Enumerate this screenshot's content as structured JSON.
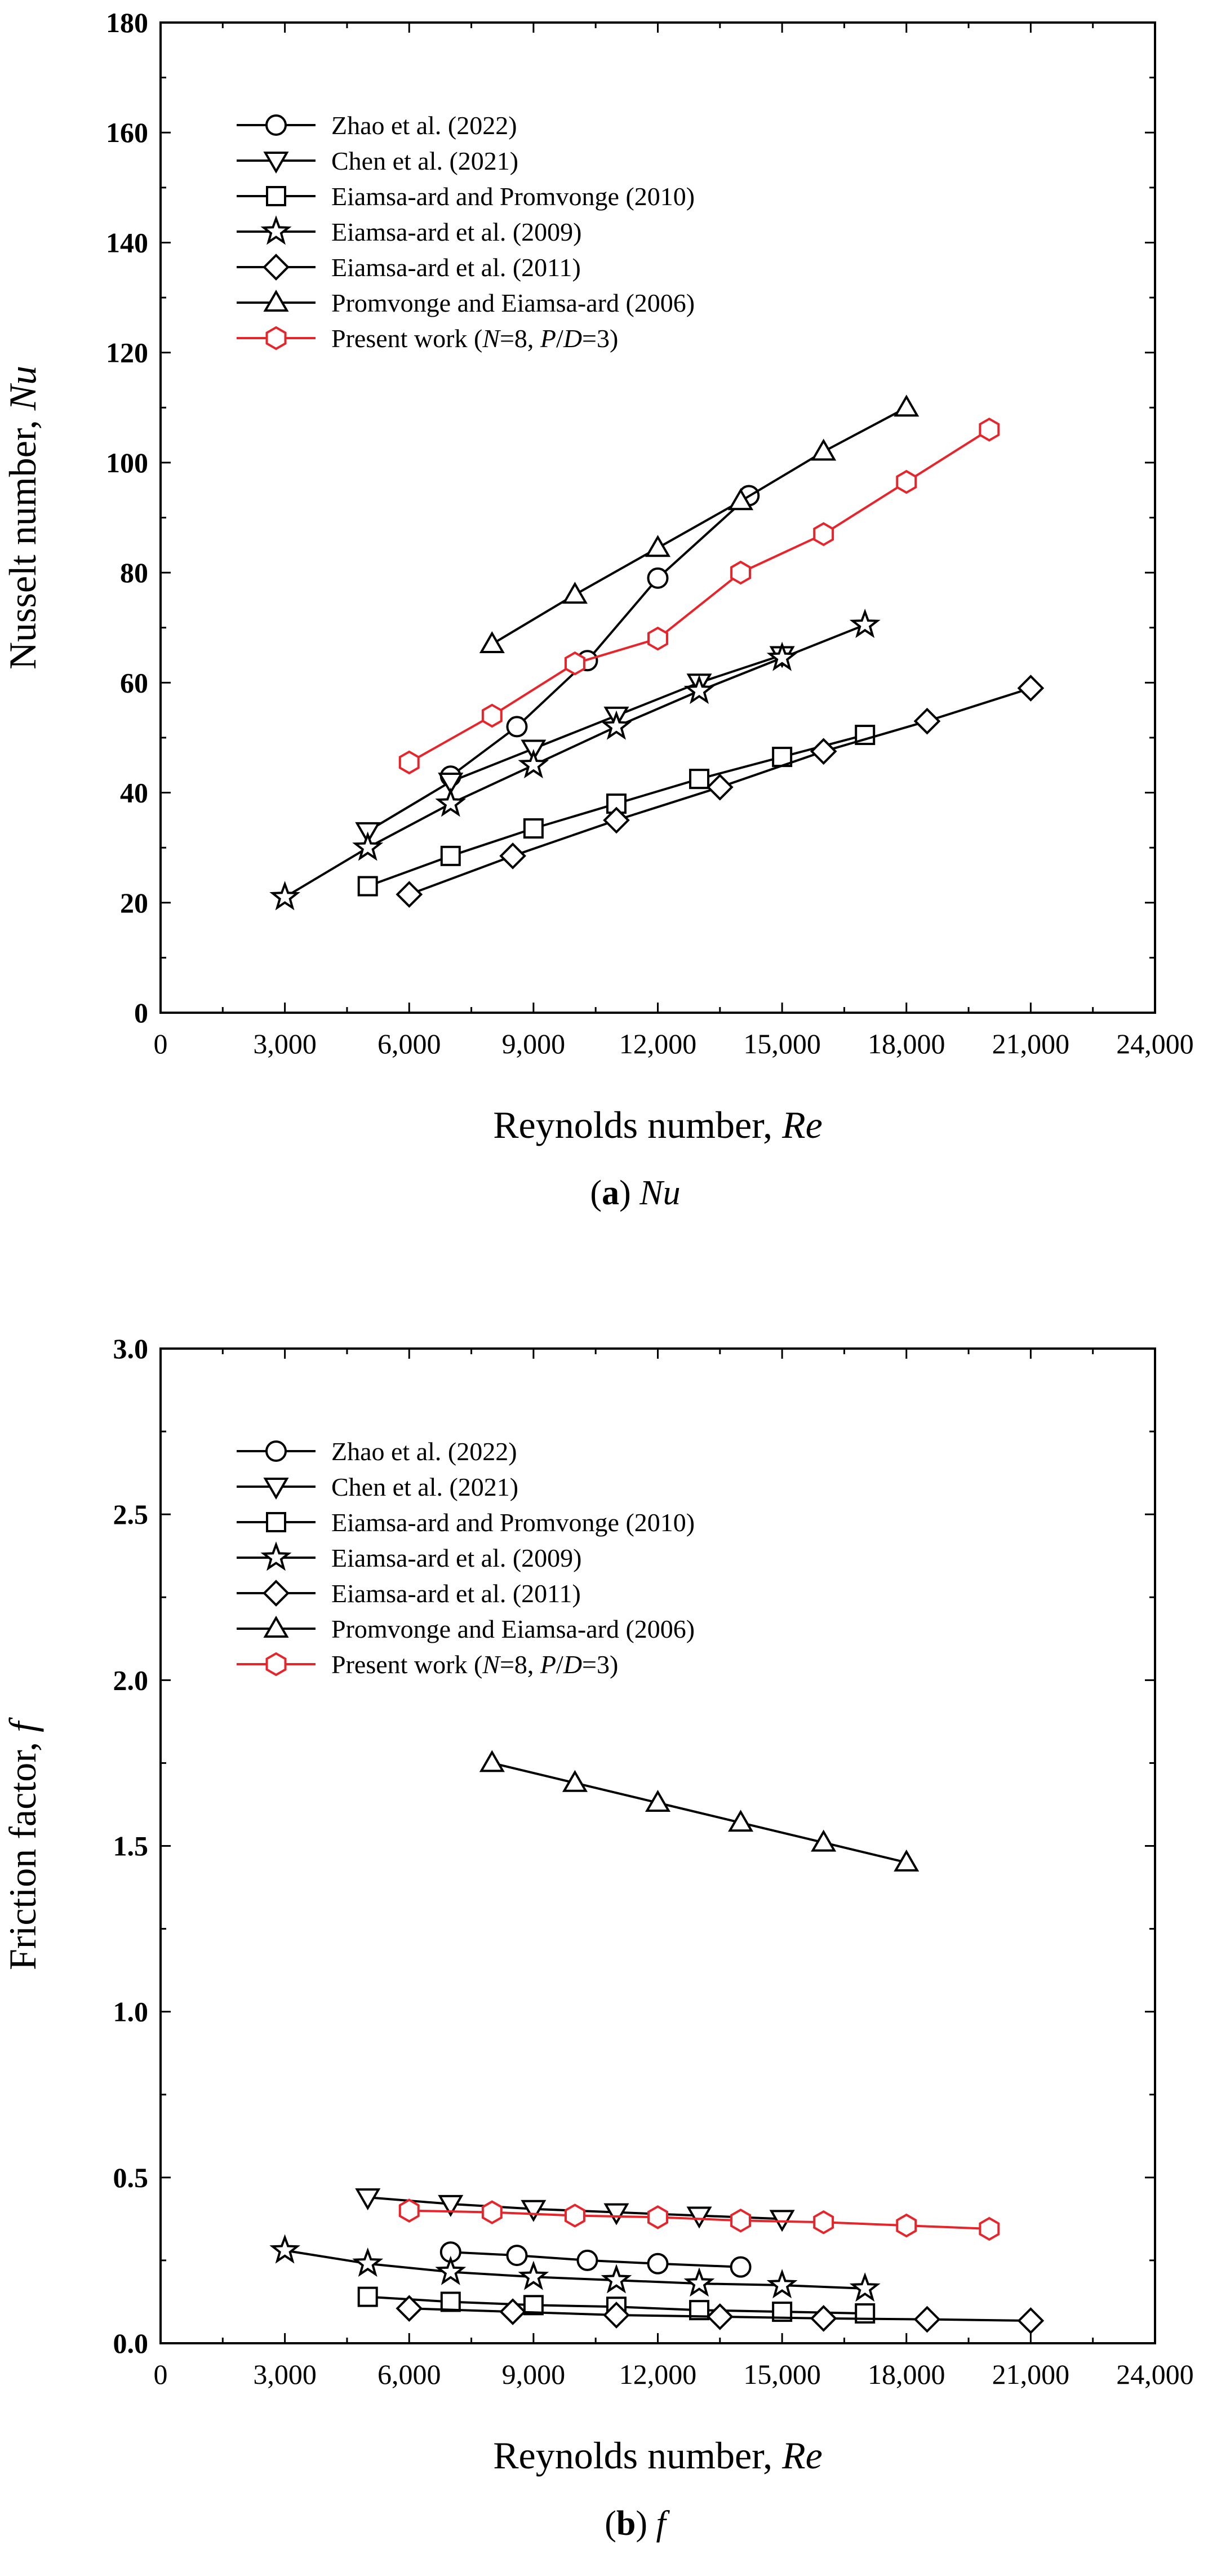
{
  "chart_data": [
    {
      "type": "line",
      "panel_id": "a",
      "caption_label": "(a)",
      "caption_text": "Nu",
      "xlabel_text": "Reynolds number, ",
      "xlabel_symbol": "Re",
      "ylabel_text": "Nusselt number, ",
      "ylabel_symbol": "Nu",
      "xlim": [
        0,
        24000
      ],
      "ylim": [
        0,
        180
      ],
      "xticks": [
        0,
        3000,
        6000,
        9000,
        12000,
        15000,
        18000,
        21000,
        24000
      ],
      "xtick_labels": [
        "0",
        "3,000",
        "6,000",
        "9,000",
        "12,000",
        "15,000",
        "18,000",
        "21,000",
        "24,000"
      ],
      "yticks": [
        0,
        20,
        40,
        60,
        80,
        100,
        120,
        140,
        160,
        180
      ],
      "ytick_labels": [
        "0",
        "20",
        "40",
        "60",
        "80",
        "100",
        "120",
        "140",
        "160",
        "180"
      ],
      "grid": false,
      "legend": "top-left",
      "series": [
        {
          "name": "Zhao et al. (2022)",
          "marker": "circle",
          "color": "#000000",
          "x": [
            7000,
            8600,
            10300,
            12000,
            14200
          ],
          "y": [
            43,
            52,
            64,
            79,
            94
          ]
        },
        {
          "name": "Chen et al. (2021)",
          "marker": "triangle-down",
          "color": "#000000",
          "x": [
            5000,
            7000,
            9000,
            11000,
            13000,
            15000
          ],
          "y": [
            33,
            42,
            48,
            54,
            60,
            65
          ]
        },
        {
          "name": "Eiamsa-ard and Promvonge (2010)",
          "marker": "square",
          "color": "#000000",
          "x": [
            5000,
            7000,
            9000,
            11000,
            13000,
            15000,
            17000
          ],
          "y": [
            23,
            28.5,
            33.5,
            38,
            42.5,
            46.5,
            50.5
          ]
        },
        {
          "name": "Eiamsa-ard et al. (2009)",
          "marker": "star",
          "color": "#000000",
          "x": [
            3000,
            5000,
            7000,
            9000,
            11000,
            13000,
            15000,
            17000
          ],
          "y": [
            21,
            30,
            38,
            45,
            52,
            58.5,
            64.5,
            70.5
          ]
        },
        {
          "name": "Eiamsa-ard et al. (2011)",
          "marker": "diamond",
          "color": "#000000",
          "x": [
            6000,
            8500,
            11000,
            13500,
            16000,
            18500,
            21000
          ],
          "y": [
            21.5,
            28.5,
            35,
            41,
            47.5,
            53,
            59
          ]
        },
        {
          "name": "Promvonge and Eiamsa-ard (2006)",
          "marker": "triangle-up",
          "color": "#000000",
          "x": [
            8000,
            10000,
            12000,
            14000,
            16000,
            18000
          ],
          "y": [
            67,
            76,
            84.5,
            93,
            102,
            110
          ]
        },
        {
          "name": "Present work (N=8, P/D=3)",
          "marker": "hexagon",
          "color": "#e8242b",
          "x": [
            6000,
            8000,
            10000,
            12000,
            14000,
            16000,
            18000,
            20000
          ],
          "y": [
            45.5,
            54,
            63.5,
            68,
            80,
            87,
            96.5,
            106
          ]
        }
      ]
    },
    {
      "type": "line",
      "panel_id": "b",
      "caption_label": "(b)",
      "caption_text": "f",
      "xlabel_text": "Reynolds number, ",
      "xlabel_symbol": "Re",
      "ylabel_text": "Friction factor, ",
      "ylabel_symbol": "f",
      "xlim": [
        0,
        24000
      ],
      "ylim": [
        0,
        3.0
      ],
      "xticks": [
        0,
        3000,
        6000,
        9000,
        12000,
        15000,
        18000,
        21000,
        24000
      ],
      "xtick_labels": [
        "0",
        "3,000",
        "6,000",
        "9,000",
        "12,000",
        "15,000",
        "18,000",
        "21,000",
        "24,000"
      ],
      "yticks": [
        0,
        0.5,
        1.0,
        1.5,
        2.0,
        2.5,
        3.0
      ],
      "ytick_labels": [
        "0.0",
        "0.5",
        "1.0",
        "1.5",
        "2.0",
        "2.5",
        "3.0"
      ],
      "grid": false,
      "legend": "top-left",
      "series": [
        {
          "name": "Zhao et al. (2022)",
          "marker": "circle",
          "color": "#000000",
          "x": [
            7000,
            8600,
            10300,
            12000,
            14000
          ],
          "y": [
            0.275,
            0.265,
            0.25,
            0.24,
            0.23
          ]
        },
        {
          "name": "Chen et al. (2021)",
          "marker": "triangle-down",
          "color": "#000000",
          "x": [
            5000,
            7000,
            9000,
            11000,
            13000,
            15000
          ],
          "y": [
            0.44,
            0.42,
            0.405,
            0.395,
            0.385,
            0.375
          ]
        },
        {
          "name": "Eiamsa-ard and Promvonge (2010)",
          "marker": "square",
          "color": "#000000",
          "x": [
            5000,
            7000,
            9000,
            11000,
            13000,
            15000,
            17000
          ],
          "y": [
            0.14,
            0.125,
            0.115,
            0.11,
            0.1,
            0.095,
            0.09
          ]
        },
        {
          "name": "Eiamsa-ard et al. (2009)",
          "marker": "star",
          "color": "#000000",
          "x": [
            3000,
            5000,
            7000,
            9000,
            11000,
            13000,
            15000,
            17000
          ],
          "y": [
            0.28,
            0.24,
            0.215,
            0.2,
            0.19,
            0.18,
            0.175,
            0.165
          ]
        },
        {
          "name": "Eiamsa-ard et al. (2011)",
          "marker": "diamond",
          "color": "#000000",
          "x": [
            6000,
            8500,
            11000,
            13500,
            16000,
            18500,
            21000
          ],
          "y": [
            0.105,
            0.095,
            0.085,
            0.08,
            0.075,
            0.072,
            0.068
          ]
        },
        {
          "name": "Promvonge and Eiamsa-ard (2006)",
          "marker": "triangle-up",
          "color": "#000000",
          "x": [
            8000,
            10000,
            12000,
            14000,
            16000,
            18000
          ],
          "y": [
            1.75,
            1.69,
            1.63,
            1.57,
            1.51,
            1.45
          ]
        },
        {
          "name": "Present work (N=8, P/D=3)",
          "marker": "hexagon",
          "color": "#e8242b",
          "x": [
            6000,
            8000,
            10000,
            12000,
            14000,
            16000,
            18000,
            20000
          ],
          "y": [
            0.4,
            0.395,
            0.385,
            0.38,
            0.37,
            0.365,
            0.355,
            0.345
          ]
        }
      ]
    }
  ]
}
